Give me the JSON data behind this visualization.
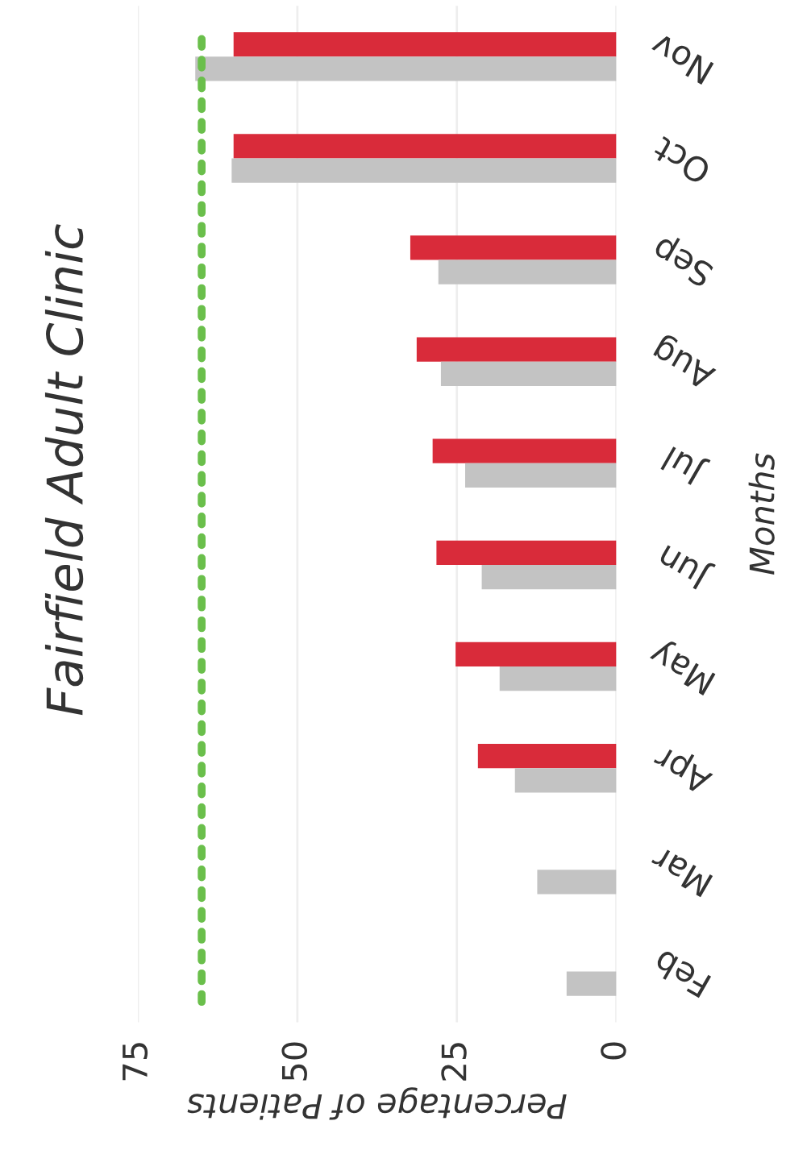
{
  "chart_data": {
    "type": "bar",
    "orientation": "horizontal",
    "title": "Fairfield Adult Clinic",
    "xlabel": "Percentage of Patients",
    "ylabel": "Months",
    "categories": [
      "Nov",
      "Oct",
      "Sep",
      "Aug",
      "Jul",
      "Jun",
      "May",
      "Apr",
      "Mar",
      "Feb"
    ],
    "series": [
      {
        "color": "#d92b3a",
        "values": [
          60,
          60,
          32.3,
          31.3,
          28.8,
          28.2,
          25.2,
          21.7,
          null,
          null
        ]
      },
      {
        "color": "#c3c3c3",
        "values": [
          66,
          60.3,
          27.9,
          27.5,
          23.7,
          21.1,
          18.3,
          15.9,
          12.4,
          7.8
        ]
      }
    ],
    "xlim": [
      75,
      0
    ],
    "xticks": [
      75,
      50,
      25,
      0
    ],
    "grid": "x",
    "legend": false,
    "ref_lines": [
      {
        "axis": "x",
        "value": 65,
        "color": "#6abf4b",
        "line_style": "dotted"
      }
    ]
  }
}
